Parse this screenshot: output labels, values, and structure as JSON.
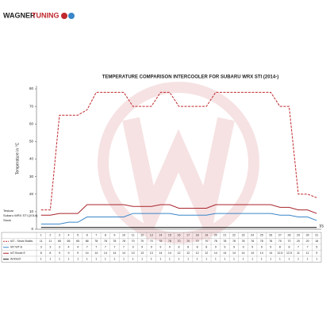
{
  "logo": {
    "brand": "WAGNER",
    "brand_accent": "TUNING"
  },
  "notes": [
    "Testcar:",
    "Subaru WRX STI (2014)",
    "Stock"
  ],
  "chart_data": {
    "type": "line",
    "title": "TEMPERATURE COMPARISON INTERCOOLER FOR SUBARU WRX STI (2014-)",
    "y_label": "Temperature in °C",
    "x_label": "t/s",
    "categories": [
      "1",
      "2",
      "3",
      "4",
      "5",
      "6",
      "7",
      "8",
      "9",
      "10",
      "11",
      "12",
      "13",
      "14",
      "15",
      "16",
      "17",
      "18",
      "19",
      "20",
      "21",
      "22",
      "23",
      "24",
      "25",
      "26",
      "27",
      "28",
      "29",
      "30",
      "31"
    ],
    "ylim": [
      0,
      80
    ],
    "yticks": [
      0,
      10,
      20,
      30,
      40,
      50,
      60,
      70,
      80
    ],
    "grid": false,
    "series": [
      {
        "name": "IAT - Stock Builds",
        "color": "#c0282d",
        "dash": true,
        "values": [
          11,
          11,
          65,
          65,
          65,
          68,
          78,
          78,
          78,
          78,
          70,
          70,
          70,
          78,
          78,
          70,
          70,
          70,
          70,
          78,
          78,
          78,
          78,
          78,
          78,
          78,
          70,
          70,
          20,
          20,
          18
        ]
      },
      {
        "name": "IAT WT-E",
        "color": "#3a86c8",
        "dash": false,
        "values": [
          3,
          3,
          3,
          4,
          4,
          7,
          7,
          7,
          7,
          7,
          9,
          9,
          9,
          9,
          9,
          8,
          8,
          8,
          8,
          9,
          9,
          9,
          9,
          9,
          9,
          9,
          8,
          8,
          7,
          7,
          5
        ]
      },
      {
        "name": "IAT Boost E",
        "color": "#a8252b",
        "dash": false,
        "values": [
          8,
          8,
          9,
          9,
          9,
          14,
          14,
          14,
          14,
          14,
          13,
          13,
          13,
          14,
          14,
          12,
          12,
          12,
          12,
          14,
          14,
          14,
          14,
          14,
          14,
          14,
          12.5,
          12.5,
          11,
          11,
          9
        ]
      },
      {
        "name": "Ambient",
        "color": "#111111",
        "dash": false,
        "values": [
          1,
          1,
          1,
          1,
          1,
          1,
          1,
          1,
          1,
          1,
          1,
          1,
          1,
          1,
          1,
          1,
          1,
          1,
          1,
          1,
          1,
          1,
          1,
          1,
          1,
          1,
          1,
          1,
          1,
          1,
          1
        ]
      }
    ]
  }
}
